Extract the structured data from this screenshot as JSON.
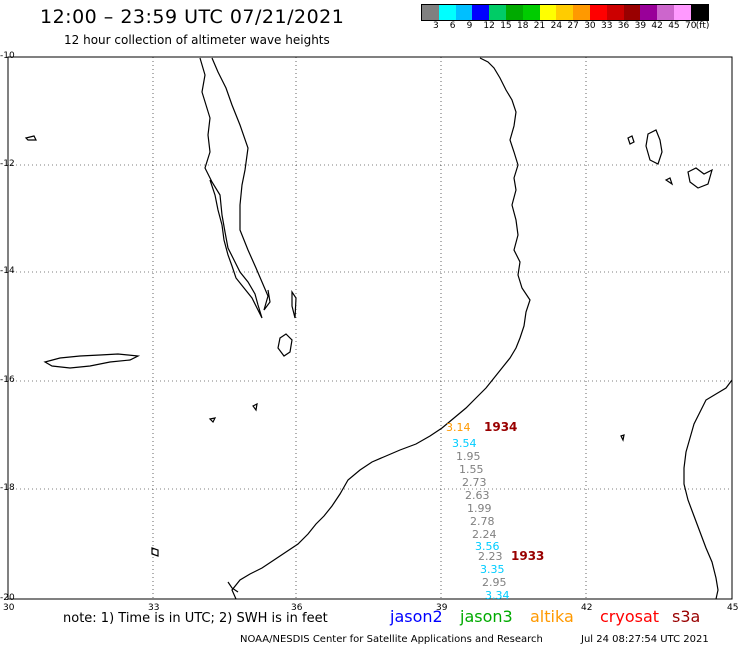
{
  "header": {
    "title": "12:00 – 23:59 UTC 07/21/2021",
    "subtitle": "12 hour collection of altimeter wave heights"
  },
  "legend": {
    "colors": [
      "#808080",
      "#00ffff",
      "#00bfff",
      "#0000ff",
      "#00cc66",
      "#00aa00",
      "#00cc00",
      "#ffff00",
      "#ffcc00",
      "#ff9900",
      "#ff0000",
      "#cc0000",
      "#990000",
      "#990099",
      "#cc66cc",
      "#ff99ff",
      "#000000"
    ],
    "labels": [
      "3",
      "6",
      "9",
      "12",
      "15",
      "18",
      "21",
      "24",
      "27",
      "30",
      "33",
      "36",
      "39",
      "42",
      "45",
      "70",
      "(ft)"
    ]
  },
  "axes": {
    "y_ticks": [
      "-10",
      "-12",
      "-14",
      "-16",
      "-18",
      "-20"
    ],
    "x_ticks": [
      "30",
      "33",
      "36",
      "39",
      "42",
      "45"
    ]
  },
  "observations": [
    {
      "value": "3.14",
      "color": "#ff9900"
    },
    {
      "value": "3.54",
      "color": "#00ccff"
    },
    {
      "value": "1.95",
      "color": "#808080"
    },
    {
      "value": "1.55",
      "color": "#808080"
    },
    {
      "value": "2.73",
      "color": "#808080"
    },
    {
      "value": "2.63",
      "color": "#808080"
    },
    {
      "value": "1.99",
      "color": "#808080"
    },
    {
      "value": "2.78",
      "color": "#808080"
    },
    {
      "value": "2.24",
      "color": "#808080"
    },
    {
      "value": "3.56",
      "color": "#00ccff"
    },
    {
      "value": "2.23",
      "color": "#808080"
    },
    {
      "value": "3.35",
      "color": "#00ccff"
    },
    {
      "value": "2.95",
      "color": "#808080"
    },
    {
      "value": "3.34",
      "color": "#00ccff"
    }
  ],
  "times": [
    {
      "value": "1934",
      "color": "#990000"
    },
    {
      "value": "1933",
      "color": "#990000"
    }
  ],
  "footer": {
    "note": "note: 1) Time is in UTC; 2) SWH is in feet",
    "satellites": [
      {
        "name": "jason2",
        "color": "#0000ff"
      },
      {
        "name": "jason3",
        "color": "#00aa00"
      },
      {
        "name": "altika",
        "color": "#ff9900"
      },
      {
        "name": "cryosat",
        "color": "#ff0000"
      },
      {
        "name": "s3a",
        "color": "#990000"
      }
    ],
    "credit": "NOAA/NESDIS Center for Satellite Applications and Research",
    "timestamp": "Jul 24 08:27:54 UTC 2021"
  }
}
